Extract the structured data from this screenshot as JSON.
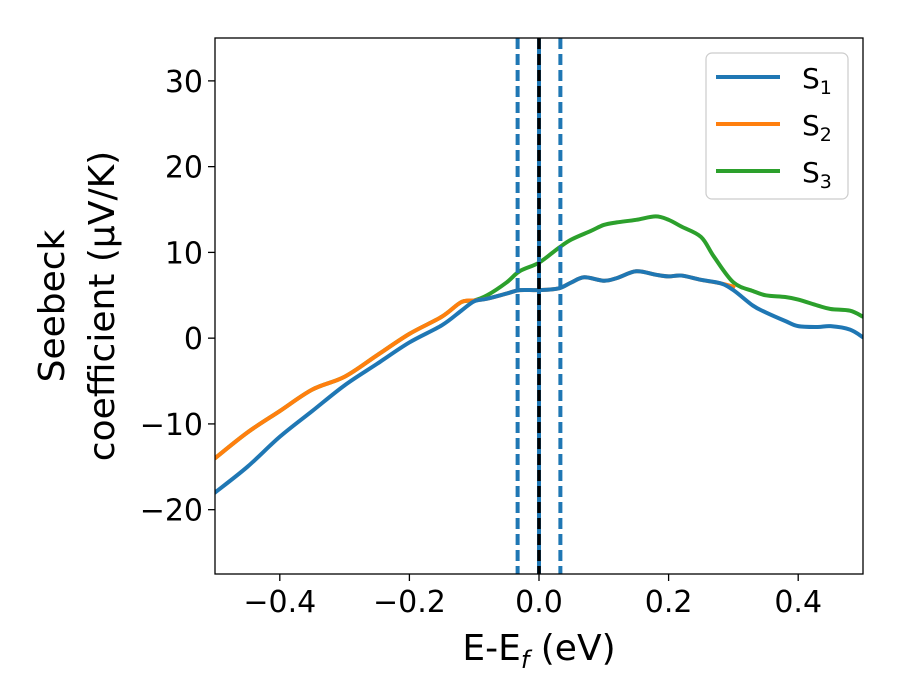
{
  "chart_data": {
    "type": "line",
    "xlabel": {
      "main": "E-E",
      "sub": "f",
      "tail": " (eV)"
    },
    "ylabel": {
      "line1": "Seebeck",
      "line2": "coefficient  (μV/K)"
    },
    "xlim": [
      -0.5,
      0.5
    ],
    "ylim": [
      -27.5,
      35
    ],
    "xticks": [
      -0.4,
      -0.2,
      0.0,
      0.2,
      0.4
    ],
    "xtick_labels": [
      "−0.4",
      "−0.2",
      "0.0",
      "0.2",
      "0.4"
    ],
    "yticks": [
      -20,
      -10,
      0,
      10,
      20,
      30
    ],
    "ytick_labels": [
      "−20",
      "−10",
      "0",
      "10",
      "20",
      "30"
    ],
    "grid": false,
    "legend_position": "top-right",
    "vertical_lines": [
      {
        "x": -0.033,
        "style": "dashed",
        "color": "#1f77b4"
      },
      {
        "x": 0.033,
        "style": "dashed",
        "color": "#1f77b4"
      },
      {
        "x": 0.0,
        "style": "solid",
        "color": "#1f77b4"
      },
      {
        "x": 0.0,
        "style": "dashed",
        "color": "#000000"
      }
    ],
    "series": [
      {
        "name": "S",
        "sub": "1",
        "color": "#1f77b4",
        "x": [
          -0.5,
          -0.45,
          -0.4,
          -0.35,
          -0.3,
          -0.25,
          -0.2,
          -0.15,
          -0.12,
          -0.1,
          -0.08,
          -0.05,
          -0.03,
          0.0,
          0.03,
          0.05,
          0.07,
          0.1,
          0.12,
          0.15,
          0.18,
          0.2,
          0.22,
          0.25,
          0.28,
          0.3,
          0.33,
          0.35,
          0.38,
          0.4,
          0.43,
          0.45,
          0.48,
          0.5
        ],
        "y": [
          -18,
          -15,
          -11.5,
          -8.5,
          -5.5,
          -3,
          -0.5,
          1.5,
          3.2,
          4.3,
          4.6,
          5.2,
          5.6,
          5.6,
          5.8,
          6.5,
          7.1,
          6.7,
          7.0,
          7.8,
          7.4,
          7.2,
          7.3,
          6.8,
          6.4,
          5.6,
          3.8,
          3.0,
          2.0,
          1.4,
          1.3,
          1.4,
          1.0,
          0.1
        ]
      },
      {
        "name": "S",
        "sub": "2",
        "color": "#ff7f0e",
        "x": [
          -0.5,
          -0.45,
          -0.4,
          -0.35,
          -0.3,
          -0.25,
          -0.2,
          -0.15,
          -0.12,
          -0.1,
          -0.08,
          -0.05,
          -0.03,
          0.0,
          0.03,
          0.05,
          0.07,
          0.1,
          0.12,
          0.15,
          0.18,
          0.2,
          0.22,
          0.25,
          0.28,
          0.3
        ],
        "y": [
          -14,
          -11,
          -8.5,
          -6,
          -4.5,
          -2,
          0.5,
          2.5,
          4.2,
          4.4,
          4.6,
          5.2,
          5.6,
          5.6,
          5.8,
          6.5,
          7.1,
          6.7,
          7.0,
          7.8,
          7.4,
          7.2,
          7.3,
          6.8,
          6.4,
          6.0
        ]
      },
      {
        "name": "S",
        "sub": "3",
        "color": "#2ca02c",
        "x": [
          -0.5,
          -0.45,
          -0.4,
          -0.35,
          -0.3,
          -0.25,
          -0.2,
          -0.15,
          -0.12,
          -0.1,
          -0.08,
          -0.05,
          -0.03,
          0.0,
          0.03,
          0.05,
          0.08,
          0.1,
          0.12,
          0.15,
          0.18,
          0.2,
          0.22,
          0.25,
          0.27,
          0.3,
          0.33,
          0.35,
          0.38,
          0.4,
          0.43,
          0.45,
          0.48,
          0.5
        ],
        "y": [
          -14,
          -11,
          -8.5,
          -6,
          -4.5,
          -2,
          0.5,
          2.5,
          4.2,
          4.4,
          5.0,
          6.5,
          7.8,
          8.8,
          10.5,
          11.5,
          12.5,
          13.2,
          13.5,
          13.8,
          14.2,
          13.8,
          13.0,
          11.8,
          9.5,
          6.5,
          5.5,
          5.0,
          4.8,
          4.5,
          3.8,
          3.4,
          3.2,
          2.5
        ]
      }
    ]
  }
}
